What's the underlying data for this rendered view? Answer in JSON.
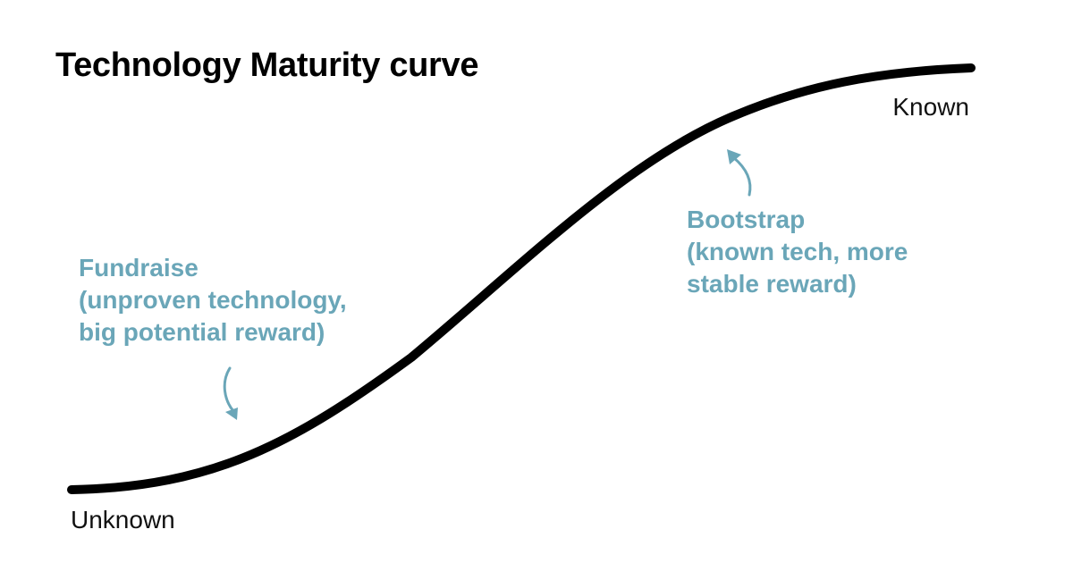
{
  "title": "Technology Maturity curve",
  "curve": {
    "start_label": "Unknown",
    "end_label": "Known",
    "color": "#000000"
  },
  "annotations": {
    "color": "#6aa6b8",
    "fundraise": {
      "lines": [
        "Fundraise",
        "(unproven technology,",
        "big potential reward)"
      ]
    },
    "bootstrap": {
      "lines": [
        "Bootstrap",
        "(known tech, more",
        "stable reward)"
      ]
    }
  }
}
